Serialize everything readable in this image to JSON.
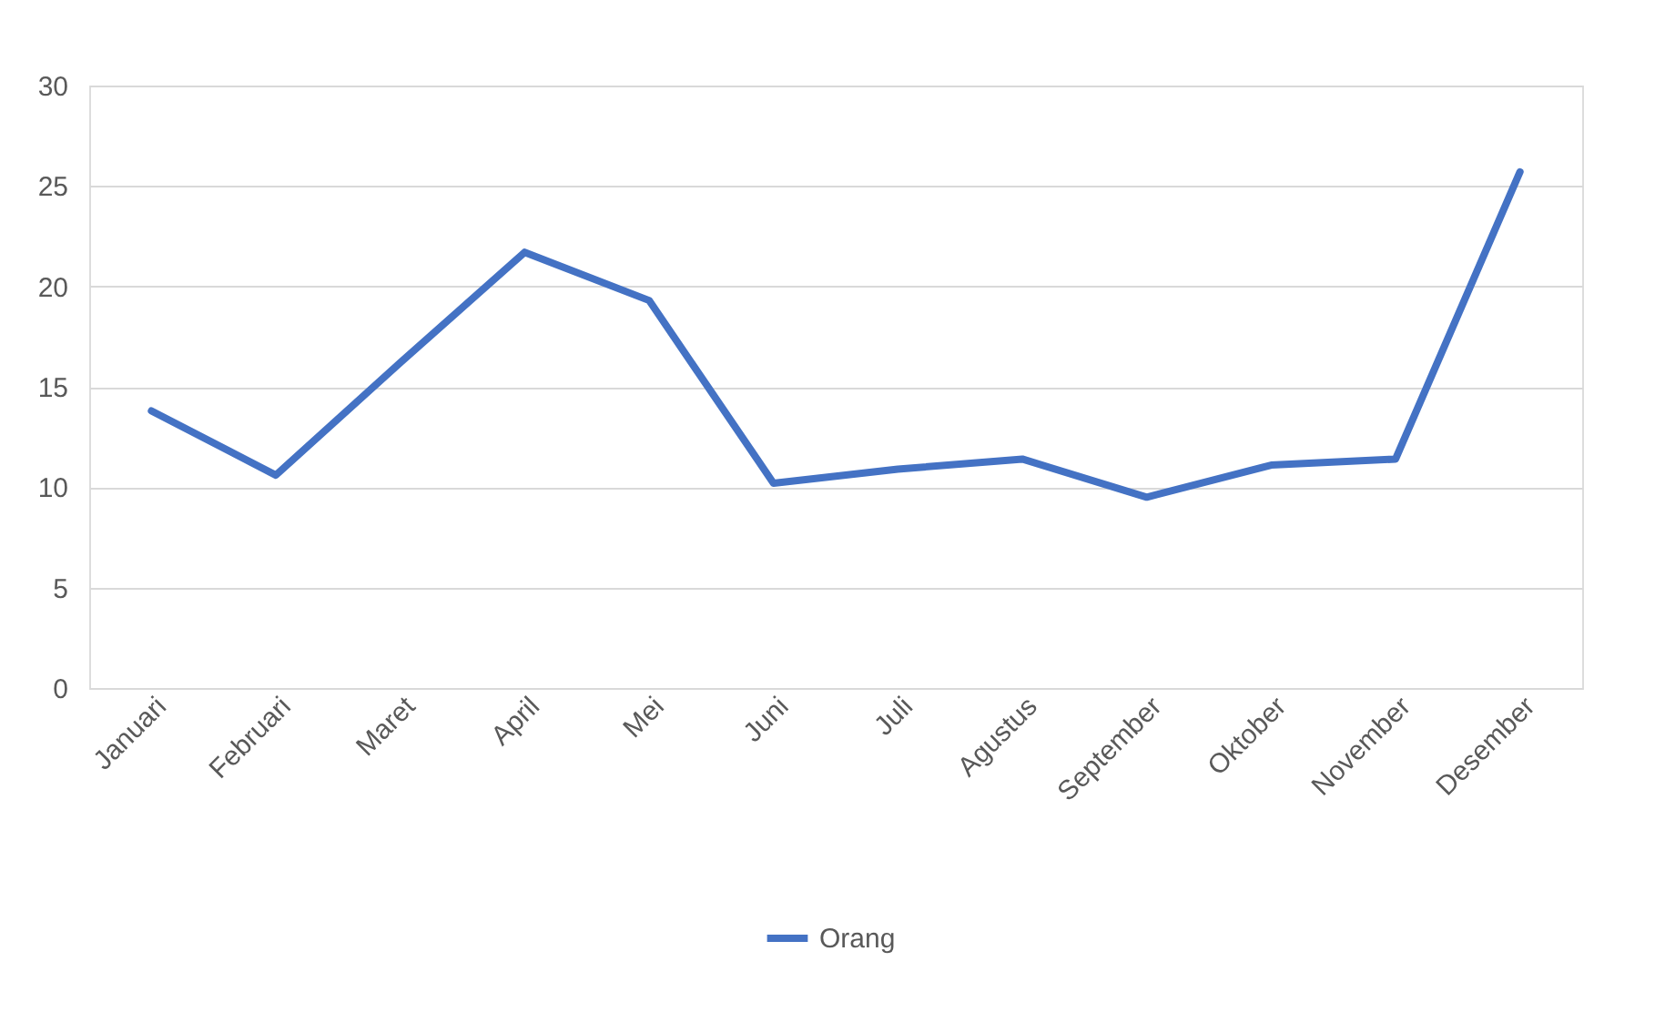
{
  "chart_data": {
    "type": "line",
    "categories": [
      "Januari",
      "Februari",
      "Maret",
      "April",
      "Mei",
      "Juni",
      "Juli",
      "Agustus",
      "September",
      "Oktober",
      "November",
      "Desember"
    ],
    "series": [
      {
        "name": "Orang",
        "color": "#4472c4",
        "values": [
          13.8,
          10.6,
          16.2,
          21.7,
          19.3,
          10.2,
          10.9,
          11.4,
          9.5,
          11.1,
          11.4,
          25.7
        ]
      }
    ],
    "ylim": [
      0,
      30
    ],
    "yticks": [
      0,
      5,
      10,
      15,
      20,
      25,
      30
    ],
    "grid": "y",
    "legend": "bottom",
    "marker": "none",
    "line_style": "solid"
  }
}
